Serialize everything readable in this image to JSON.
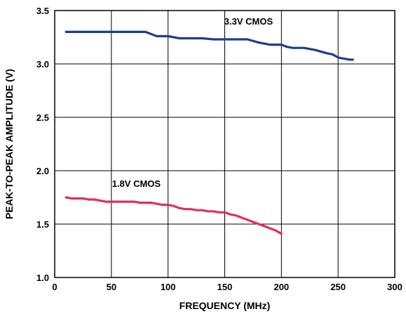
{
  "chart_data": {
    "type": "line",
    "xlabel": "FREQUENCY (MHz)",
    "ylabel": "PEAK-TO-PEAK AMPLITUDE (V)",
    "xlim": [
      0,
      300
    ],
    "ylim": [
      1.0,
      3.5
    ],
    "x_ticks": [
      0,
      50,
      100,
      150,
      200,
      250,
      300
    ],
    "y_ticks": [
      1.0,
      1.5,
      2.0,
      2.5,
      3.0,
      3.5
    ],
    "x_tick_labels": [
      "0",
      "50",
      "100",
      "150",
      "200",
      "250",
      "300"
    ],
    "y_tick_labels": [
      "1.0",
      "1.5",
      "2.0",
      "2.5",
      "3.0",
      "3.5"
    ],
    "grid": true,
    "series": [
      {
        "name": "3.3V CMOS",
        "color": "#1f3f8a",
        "x": [
          10,
          20,
          30,
          40,
          50,
          60,
          70,
          80,
          85,
          90,
          100,
          105,
          110,
          120,
          130,
          140,
          150,
          160,
          170,
          180,
          190,
          200,
          205,
          210,
          220,
          230,
          240,
          245,
          250,
          255,
          260,
          263
        ],
        "y": [
          3.3,
          3.3,
          3.3,
          3.3,
          3.3,
          3.3,
          3.3,
          3.3,
          3.28,
          3.26,
          3.26,
          3.25,
          3.24,
          3.24,
          3.24,
          3.23,
          3.23,
          3.23,
          3.23,
          3.2,
          3.18,
          3.18,
          3.16,
          3.15,
          3.15,
          3.13,
          3.1,
          3.09,
          3.06,
          3.05,
          3.04,
          3.04
        ]
      },
      {
        "name": "1.8V CMOS",
        "color": "#e0305a",
        "x": [
          10,
          15,
          20,
          25,
          30,
          35,
          40,
          45,
          50,
          55,
          60,
          65,
          70,
          75,
          80,
          85,
          90,
          95,
          100,
          105,
          110,
          115,
          120,
          125,
          130,
          135,
          140,
          145,
          150,
          155,
          160,
          165,
          170,
          175,
          180,
          185,
          190,
          195,
          200
        ],
        "y": [
          1.75,
          1.74,
          1.74,
          1.74,
          1.73,
          1.73,
          1.72,
          1.71,
          1.71,
          1.71,
          1.71,
          1.71,
          1.71,
          1.7,
          1.7,
          1.7,
          1.69,
          1.68,
          1.68,
          1.67,
          1.65,
          1.64,
          1.64,
          1.63,
          1.63,
          1.62,
          1.62,
          1.61,
          1.61,
          1.59,
          1.58,
          1.56,
          1.54,
          1.52,
          1.5,
          1.48,
          1.46,
          1.44,
          1.41
        ]
      }
    ],
    "annotations": [
      {
        "text": "3.3V CMOS",
        "x": 171,
        "y": 3.33,
        "series": 0
      },
      {
        "text": "1.8V CMOS",
        "x": 72,
        "y": 1.81,
        "series": 1
      }
    ]
  }
}
